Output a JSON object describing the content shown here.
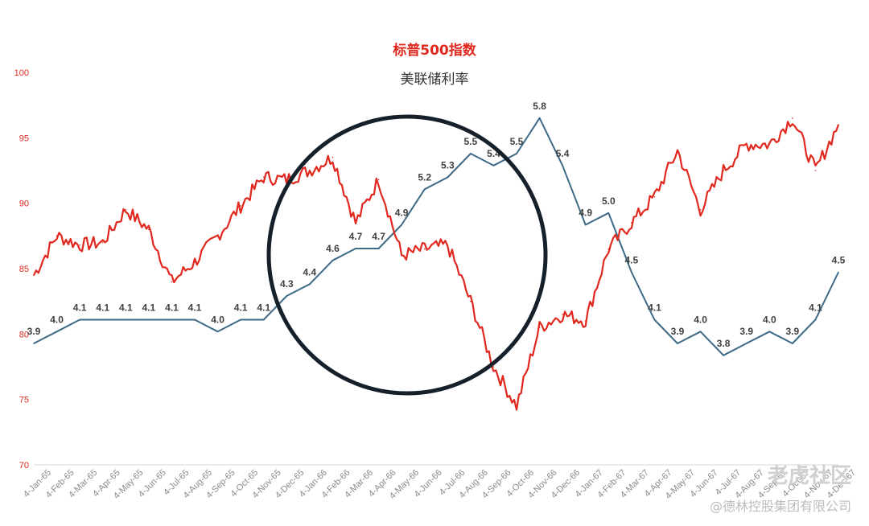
{
  "chart_data": {
    "type": "line",
    "series": [
      {
        "name": "标普500指数",
        "axis": "left",
        "color": "#e0281e",
        "x": [
          "4-Jan-65",
          "4-Feb-65",
          "4-Mar-65",
          "4-Apr-65",
          "4-May-65",
          "4-Jun-65",
          "4-Jul-65",
          "4-Aug-65",
          "4-Sep-65",
          "4-Oct-65",
          "4-Nov-65",
          "4-Dec-65",
          "4-Jan-66",
          "4-Feb-66",
          "4-Mar-66",
          "4-Apr-66",
          "4-May-66",
          "4-Jun-66",
          "4-Jul-66",
          "4-Aug-66",
          "4-Sep-66",
          "4-Oct-66",
          "4-Nov-66",
          "4-Dec-66",
          "4-Jan-67",
          "4-Feb-67",
          "4-Mar-67",
          "4-Apr-67",
          "4-May-67",
          "4-Jun-67",
          "4-Jul-67",
          "4-Aug-67",
          "4-Sep-67",
          "4-Oct-67",
          "4-Nov-67",
          "4-Dec-67"
        ],
        "values": [
          84.5,
          87.5,
          86.8,
          87.0,
          89.5,
          88.0,
          84.0,
          85.5,
          87.5,
          89.8,
          92.0,
          91.8,
          92.5,
          93.5,
          88.5,
          91.8,
          86.0,
          86.5,
          86.8,
          82.5,
          77.5,
          74.5,
          80.5,
          81.5,
          81.0,
          86.5,
          88.5,
          90.5,
          94.0,
          89.5,
          92.5,
          94.5,
          94.5,
          96.5,
          92.5,
          96.0
        ]
      },
      {
        "name": "美联储利率",
        "axis": "right",
        "color": "#3d6a87",
        "x": [
          "4-Jan-65",
          "4-Feb-65",
          "4-Mar-65",
          "4-Apr-65",
          "4-May-65",
          "4-Jun-65",
          "4-Jul-65",
          "4-Aug-65",
          "4-Sep-65",
          "4-Oct-65",
          "4-Nov-65",
          "4-Dec-65",
          "4-Jan-66",
          "4-Feb-66",
          "4-Mar-66",
          "4-Apr-66",
          "4-May-66",
          "4-Jun-66",
          "4-Jul-66",
          "4-Aug-66",
          "4-Sep-66",
          "4-Oct-66",
          "4-Nov-66",
          "4-Dec-66",
          "4-Jan-67",
          "4-Feb-67",
          "4-Mar-67",
          "4-Apr-67",
          "4-May-67",
          "4-Jun-67",
          "4-Jul-67",
          "4-Aug-67",
          "4-Sep-67",
          "4-Oct-67",
          "4-Nov-67",
          "4-Dec-67"
        ],
        "values": [
          3.9,
          4.0,
          4.1,
          4.1,
          4.1,
          4.1,
          4.1,
          4.1,
          4.0,
          4.1,
          4.1,
          4.3,
          4.4,
          4.6,
          4.7,
          4.7,
          4.9,
          5.2,
          5.3,
          5.5,
          5.4,
          5.5,
          5.8,
          5.4,
          4.9,
          5.0,
          4.5,
          4.1,
          3.9,
          4.0,
          3.8,
          3.9,
          4.0,
          3.9,
          4.1,
          4.5
        ],
        "labels": [
          "3.9",
          "4.0",
          "4.1",
          "4.1",
          "4.1",
          "4.1",
          "4.1",
          "4.1",
          "4.0",
          "4.1",
          "4.1",
          "4.3",
          "4.4",
          "4.6",
          "4.7",
          "4.7",
          "4.9",
          "5.2",
          "5.3",
          "5.5",
          "5.4",
          "5.5",
          "5.8",
          "5.4",
          "4.9",
          "5.0",
          "4.5",
          "4.1",
          "3.9",
          "4.0",
          "3.8",
          "3.9",
          "4.0",
          "3.9",
          "4.1",
          "4.5"
        ]
      }
    ],
    "x_tick_labels": [
      "4-Jan-65",
      "4-Feb-65",
      "4-Mar-65",
      "4-Apr-65",
      "4-May-65",
      "4-Jun-65",
      "4-Jul-65",
      "4-Aug-65",
      "4-Sep-65",
      "4-Oct-65",
      "4-Nov-65",
      "4-Dec-65",
      "4-Jan-66",
      "4-Feb-66",
      "4-Mar-66",
      "4-Apr-66",
      "4-May-66",
      "4-Jun-66",
      "4-Jul-66",
      "4-Aug-66",
      "4-Sep-66",
      "4-Oct-66",
      "4-Nov-66",
      "4-Dec-66",
      "4-Jan-67",
      "4-Feb-67",
      "4-Mar-67",
      "4-Apr-67",
      "4-May-67",
      "4-Jun-67",
      "4-Jul-67",
      "4-Aug-67",
      "4-Sep-67",
      "4-Oct-67",
      "4-Nov-67",
      "4-Dec-67"
    ],
    "y_ticks": [
      "100",
      "95",
      "90",
      "85",
      "80",
      "75",
      "70"
    ],
    "ylim": [
      70,
      100
    ],
    "y2lim": [
      3.5,
      5.9
    ],
    "grid": false,
    "annotation": "circle"
  },
  "legend": {
    "sp500": "标普500指数",
    "fedrate": "美联储利率"
  },
  "watermark": {
    "logo": "老虎社区",
    "credit": "@德林控股集团有限公司"
  },
  "colors": {
    "sp500": "#e0281e",
    "fedrate": "#3d6a87",
    "circle": "#16202b",
    "tick_left": "#e0281e",
    "tick_x": "#8a8a8a",
    "rate_label": "#404040"
  }
}
